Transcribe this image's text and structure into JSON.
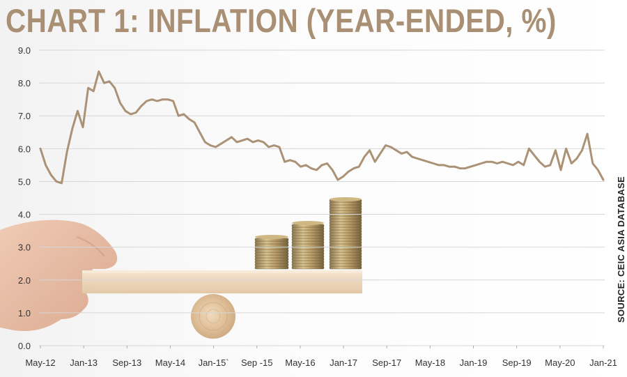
{
  "title": "CHART 1: INFLATION (YEAR-ENDED, %)",
  "source": "SOURCE: CEIC ASIA DATABASE",
  "colors": {
    "line": "#ab9176",
    "title": "#a98f73",
    "grid": "#d6d6d6"
  },
  "chart_data": {
    "type": "line",
    "title": "CHART 1: INFLATION (YEAR-ENDED, %)",
    "xlabel": "",
    "ylabel": "",
    "ylim": [
      0,
      9
    ],
    "yticks": [
      "0.0",
      "1.0",
      "2.0",
      "3.0",
      "4.0",
      "5.0",
      "6.0",
      "7.0",
      "8.0",
      "9.0"
    ],
    "xticks": [
      "May-12",
      "Jan-13",
      "Sep-13",
      "May-14",
      "Jan-15`",
      "Sep -15",
      "May-16",
      "Jan-17",
      "Sep-17",
      "May-18",
      "Jan-19",
      "Sep-19",
      "May-20",
      "Jan-21"
    ],
    "grid": true,
    "series": [
      {
        "values": [
          6.0,
          5.5,
          5.2,
          5.0,
          4.95,
          5.9,
          6.6,
          7.15,
          6.65,
          7.85,
          7.75,
          8.35,
          8.0,
          8.05,
          7.85,
          7.4,
          7.15,
          7.05,
          7.1,
          7.3,
          7.45,
          7.5,
          7.45,
          7.5,
          7.5,
          7.45,
          7.0,
          7.05,
          6.9,
          6.8,
          6.5,
          6.2,
          6.1,
          6.05,
          6.15,
          6.25,
          6.35,
          6.2,
          6.25,
          6.3,
          6.2,
          6.25,
          6.2,
          6.05,
          6.1,
          6.05,
          5.6,
          5.65,
          5.6,
          5.45,
          5.5,
          5.4,
          5.35,
          5.5,
          5.55,
          5.35,
          5.05,
          5.15,
          5.3,
          5.4,
          5.45,
          5.75,
          5.95,
          5.6,
          5.85,
          6.1,
          6.05,
          5.95,
          5.85,
          5.9,
          5.75,
          5.7,
          5.65,
          5.6,
          5.55,
          5.5,
          5.5,
          5.45,
          5.45,
          5.4,
          5.4,
          5.45,
          5.5,
          5.55,
          5.6,
          5.6,
          5.55,
          5.6,
          5.55,
          5.5,
          5.6,
          5.5,
          6.0,
          5.8,
          5.6,
          5.45,
          5.5,
          5.95,
          5.35,
          6.0,
          5.55,
          5.7,
          5.95,
          6.45,
          5.55,
          5.35,
          5.05
        ]
      }
    ]
  }
}
